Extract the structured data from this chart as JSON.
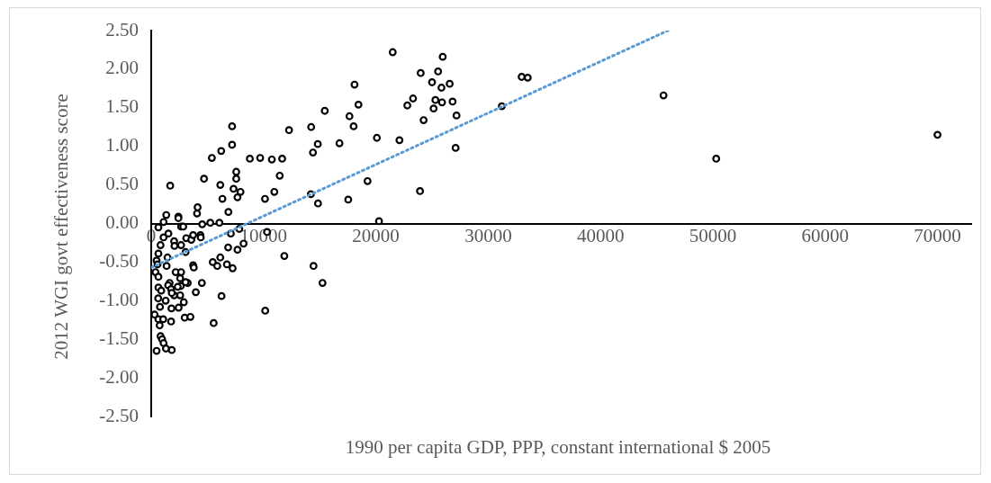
{
  "chart_data": {
    "type": "scatter",
    "xlabel": "1990 per capita GDP, PPP, constant international $ 2005",
    "ylabel": "2012 WGI govt effectiveness score",
    "xlim": [
      0,
      73000
    ],
    "xticks": [
      0,
      10000,
      20000,
      30000,
      40000,
      50000,
      60000,
      70000
    ],
    "ylim": [
      -2.5,
      2.5
    ],
    "yticks": [
      {
        "value": -2.5,
        "label": "-2.50"
      },
      {
        "value": -2,
        "label": "-2.00"
      },
      {
        "value": -1.5,
        "label": "-1.50"
      },
      {
        "value": -1,
        "label": "-1.00"
      },
      {
        "value": -0.5,
        "label": "-0.50"
      },
      {
        "value": 0,
        "label": "0.00"
      },
      {
        "value": 0.5,
        "label": "0.50"
      },
      {
        "value": 1,
        "label": "1.00"
      },
      {
        "value": 1.5,
        "label": "1.50"
      },
      {
        "value": 2,
        "label": "2.00"
      },
      {
        "value": 2.5,
        "label": "2.50"
      }
    ],
    "grid": false,
    "legend": false,
    "series": [
      {
        "type": "scatter",
        "color": "#000000",
        "marker": "circle",
        "x": [
          70000,
          50300,
          45610,
          31210,
          32980,
          33520,
          21500,
          25950,
          23990,
          25540,
          25000,
          25840,
          26570,
          18100,
          18450,
          15450,
          23310,
          22800,
          25300,
          25890,
          25140,
          26830,
          27180,
          24250,
          27100,
          17650,
          18020,
          14240,
          12270,
          16760,
          14830,
          14400,
          20090,
          22100,
          11660,
          10740,
          11440,
          10960,
          14210,
          14850,
          17540,
          19260,
          23930,
          20280,
          11850,
          14450,
          15250,
          7200,
          7200,
          5400,
          6230,
          8780,
          9700,
          7570,
          7570,
          4700,
          6150,
          1690,
          7330,
          7950,
          7680,
          6340,
          10130,
          4130,
          4080,
          6870,
          1340,
          2420,
          2420,
          1100,
          4540,
          5260,
          6070,
          640,
          2660,
          2850,
          1530,
          1100,
          3120,
          3570,
          3730,
          4380,
          4410,
          2040,
          2070,
          2660,
          830,
          3060,
          640,
          7090,
          7840,
          8220,
          10310,
          6850,
          7680,
          480,
          1450,
          1370,
          560,
          380,
          640,
          2180,
          2660,
          2580,
          3730,
          3790,
          5480,
          5880,
          6740,
          7250,
          6150,
          4510,
          3250,
          3060,
          3970,
          2630,
          2360,
          1640,
          1510,
          1770,
          2040,
          2580,
          1830,
          1290,
          640,
          890,
          620,
          780,
          2900,
          1800,
          2440,
          6260,
          10150,
          5560,
          2980,
          3490,
          1770,
          300,
          640,
          1070,
          750,
          830,
          970,
          1100,
          1310,
          1830,
          480
        ],
        "values": [
          1.15,
          0.84,
          1.66,
          1.52,
          1.9,
          1.89,
          2.22,
          2.16,
          1.95,
          1.97,
          1.83,
          1.76,
          1.81,
          1.8,
          1.54,
          1.46,
          1.62,
          1.53,
          1.6,
          1.57,
          1.49,
          1.58,
          1.4,
          1.34,
          0.98,
          1.39,
          1.26,
          1.25,
          1.21,
          1.04,
          1.03,
          0.92,
          1.11,
          1.08,
          0.84,
          0.83,
          0.62,
          0.41,
          0.38,
          0.26,
          0.31,
          0.55,
          0.42,
          0.03,
          -0.42,
          -0.55,
          -0.77,
          1.26,
          1.02,
          0.85,
          0.94,
          0.84,
          0.85,
          0.67,
          0.58,
          0.58,
          0.5,
          0.49,
          0.45,
          0.41,
          0.34,
          0.32,
          0.32,
          0.21,
          0.13,
          0.15,
          0.11,
          0.09,
          0.07,
          0.02,
          -0.01,
          0.01,
          0.01,
          -0.05,
          -0.04,
          -0.04,
          -0.13,
          -0.18,
          -0.19,
          -0.21,
          -0.15,
          -0.15,
          -0.18,
          -0.23,
          -0.29,
          -0.28,
          -0.28,
          -0.37,
          -0.39,
          -0.13,
          -0.07,
          -0.26,
          -0.11,
          -0.31,
          -0.34,
          -0.48,
          -0.44,
          -0.55,
          -0.53,
          -0.63,
          -0.69,
          -0.63,
          -0.63,
          -0.71,
          -0.54,
          -0.57,
          -0.5,
          -0.55,
          -0.53,
          -0.58,
          -0.44,
          -0.77,
          -0.77,
          -0.76,
          -0.89,
          -0.81,
          -0.82,
          -0.77,
          -0.8,
          -0.85,
          -0.93,
          -0.93,
          -0.9,
          -1.0,
          -0.83,
          -0.87,
          -0.97,
          -1.08,
          -1.02,
          -1.1,
          -1.09,
          -0.94,
          -1.13,
          -1.29,
          -1.22,
          -1.21,
          -1.27,
          -1.18,
          -1.24,
          -1.24,
          -1.32,
          -1.46,
          -1.5,
          -1.55,
          -1.62,
          -1.64,
          -1.65
        ]
      },
      {
        "type": "line",
        "color": "#5b9bd5",
        "line_style": "dotted",
        "marker": "none",
        "x": [
          0,
          46000
        ],
        "values": [
          -0.57,
          2.5
        ]
      }
    ]
  }
}
